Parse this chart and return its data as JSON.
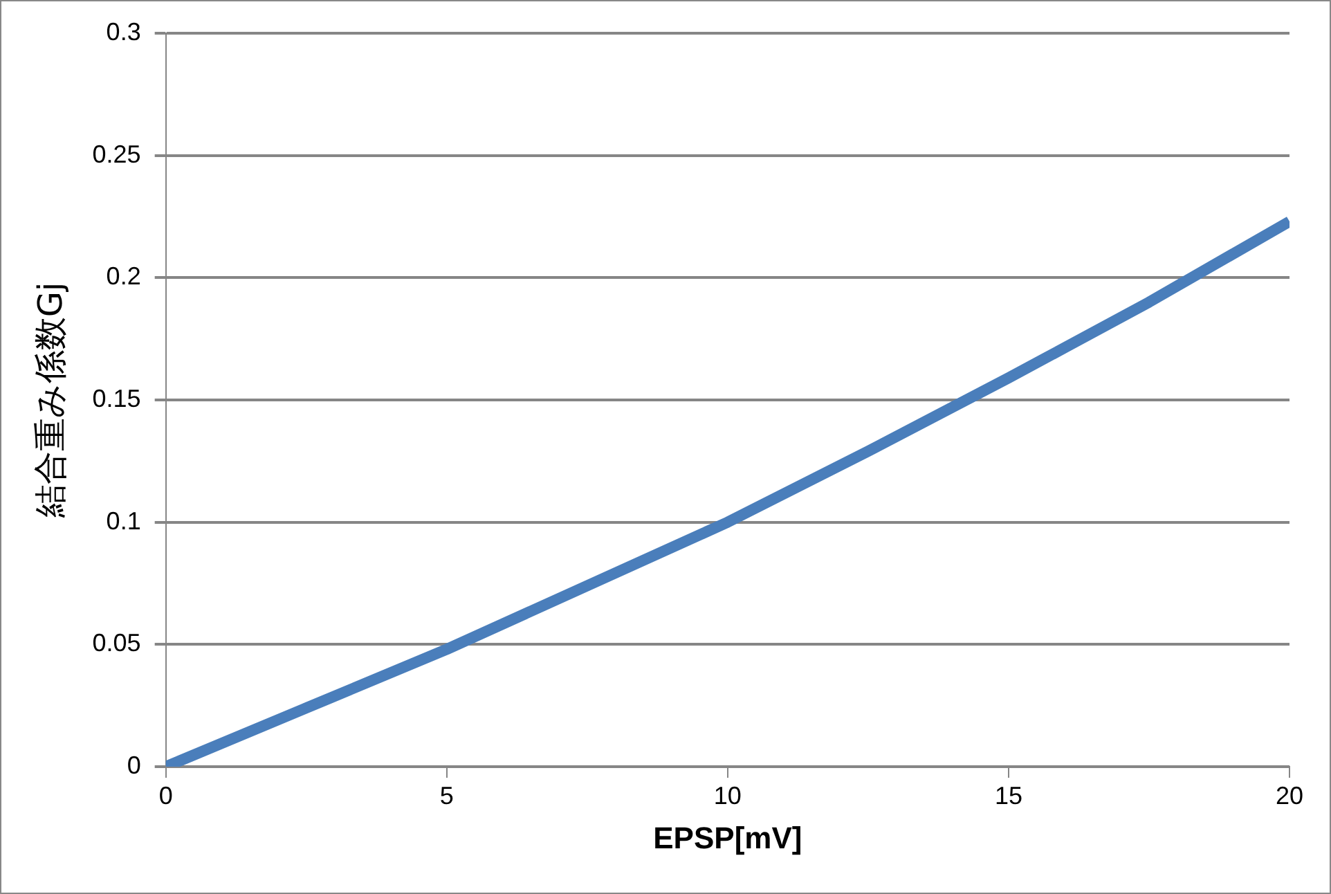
{
  "chart_data": {
    "type": "line",
    "xlabel": "EPSP[mV]",
    "ylabel": "結合重み係数Gj",
    "series": [
      {
        "color": "#4a7ebb",
        "x": [
          0,
          2.5,
          5,
          7.5,
          10,
          12.5,
          15,
          17.5,
          20
        ],
        "values": [
          0,
          0.024,
          0.048,
          0.074,
          0.1,
          0.129,
          0.159,
          0.19,
          0.223
        ]
      }
    ],
    "xlim": [
      0,
      20
    ],
    "xticks": [
      0,
      5,
      10,
      15,
      20
    ],
    "ylim": [
      0,
      0.3
    ],
    "yticks": [
      0,
      0.05,
      0.1,
      0.15,
      0.2,
      0.25,
      0.3
    ],
    "grid": "y",
    "legend": false,
    "marker": "none",
    "line_style": "solid"
  }
}
